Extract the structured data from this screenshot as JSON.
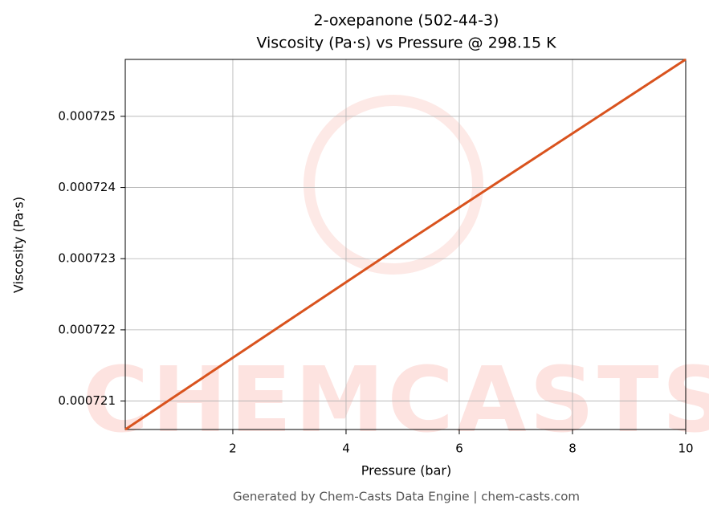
{
  "chart_data": {
    "type": "line",
    "title": "2-oxepanone (502-44-3)",
    "subtitle": "Viscosity (Pa·s) vs Pressure @ 298.15 K",
    "x_label": "Pressure (bar)",
    "y_label": "Viscosity (Pa·s)",
    "watermark": "CHEMCASTS",
    "footer": "Generated by Chem-Casts Data Engine | chem-casts.com",
    "x": [
      0.1,
      5,
      10
    ],
    "series": [
      {
        "name": "Viscosity",
        "color": "#d9531e",
        "values": [
          0.0007206,
          0.0007232,
          0.0007258
        ]
      }
    ],
    "xlim": [
      0.1,
      10
    ],
    "xticks": [
      2,
      4,
      6,
      8,
      10
    ],
    "ylim": [
      0.0007206,
      0.0007258
    ],
    "yticks": [
      0.000721,
      0.000722,
      0.000723,
      0.000724,
      0.000725
    ],
    "grid": true
  }
}
